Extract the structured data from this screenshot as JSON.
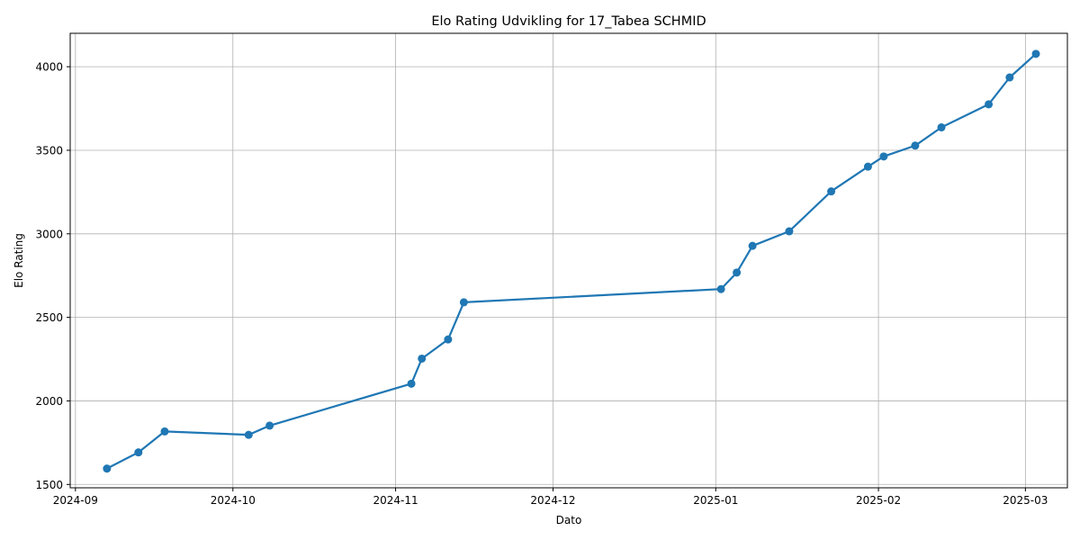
{
  "chart_data": {
    "type": "line",
    "title": "Elo Rating Udvikling for 17_Tabea SCHMID",
    "xlabel": "Dato",
    "ylabel": "Elo Rating",
    "x_ticks": [
      "2024-09",
      "2024-10",
      "2024-11",
      "2024-12",
      "2025-01",
      "2025-02",
      "2025-03"
    ],
    "y_ticks": [
      1500,
      2000,
      2500,
      3000,
      3500,
      4000
    ],
    "xlim": [
      "2024-08-31",
      "2025-03-09"
    ],
    "ylim": [
      1480,
      4200
    ],
    "grid": true,
    "color": "#1f77b4",
    "marker": "circle",
    "series": [
      {
        "x": [
          "2024-09-07",
          "2024-09-13",
          "2024-09-18",
          "2024-10-04",
          "2024-10-08",
          "2024-11-04",
          "2024-11-06",
          "2024-11-11",
          "2024-11-14",
          "2025-01-02",
          "2025-01-05",
          "2025-01-08",
          "2025-01-15",
          "2025-01-23",
          "2025-01-30",
          "2025-02-02",
          "2025-02-08",
          "2025-02-13",
          "2025-02-22",
          "2025-02-26",
          "2025-03-03"
        ],
        "y": [
          1595,
          1692,
          1817,
          1797,
          1852,
          2103,
          2253,
          2368,
          2590,
          2669,
          2768,
          2928,
          3015,
          3254,
          3402,
          3463,
          3528,
          3637,
          3775,
          3936,
          4077
        ]
      }
    ]
  }
}
